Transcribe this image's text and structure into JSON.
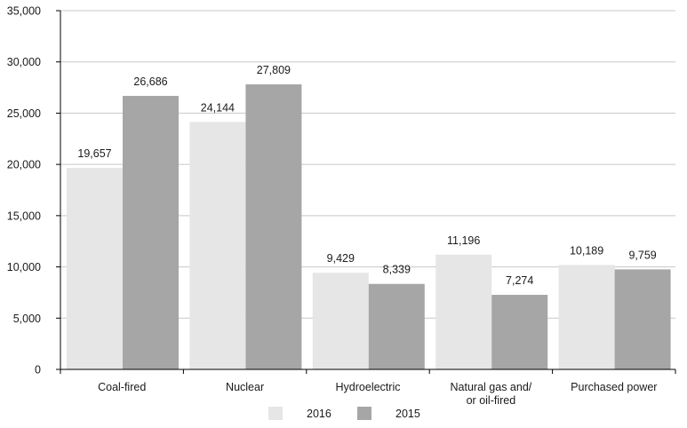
{
  "chart_data": {
    "type": "bar",
    "categories": [
      "Coal-fired",
      "Nuclear",
      "Hydroelectric",
      "Natural gas and/\nor oil-fired",
      "Purchased power"
    ],
    "series": [
      {
        "name": "2016",
        "values": [
          19657,
          24144,
          9429,
          11196,
          10189
        ],
        "color": "#e6e6e6"
      },
      {
        "name": "2015",
        "values": [
          26686,
          27809,
          8339,
          7274,
          9759
        ],
        "color": "#a6a6a6"
      }
    ],
    "ylim": [
      0,
      35000
    ],
    "yticks": [
      0,
      5000,
      10000,
      15000,
      20000,
      25000,
      30000,
      35000
    ],
    "ytick_labels": [
      "0",
      "5,000",
      "10,000",
      "15,000",
      "20,000",
      "25,000",
      "30,000",
      "35,000"
    ],
    "data_labels": [
      [
        "19,657",
        "24,144",
        "9,429",
        "11,196",
        "10,189"
      ],
      [
        "26,686",
        "27,809",
        "8,339",
        "7,274",
        "9,759"
      ]
    ],
    "grid": true,
    "legend_position": "bottom-center",
    "title": "",
    "xlabel": "",
    "ylabel": ""
  }
}
